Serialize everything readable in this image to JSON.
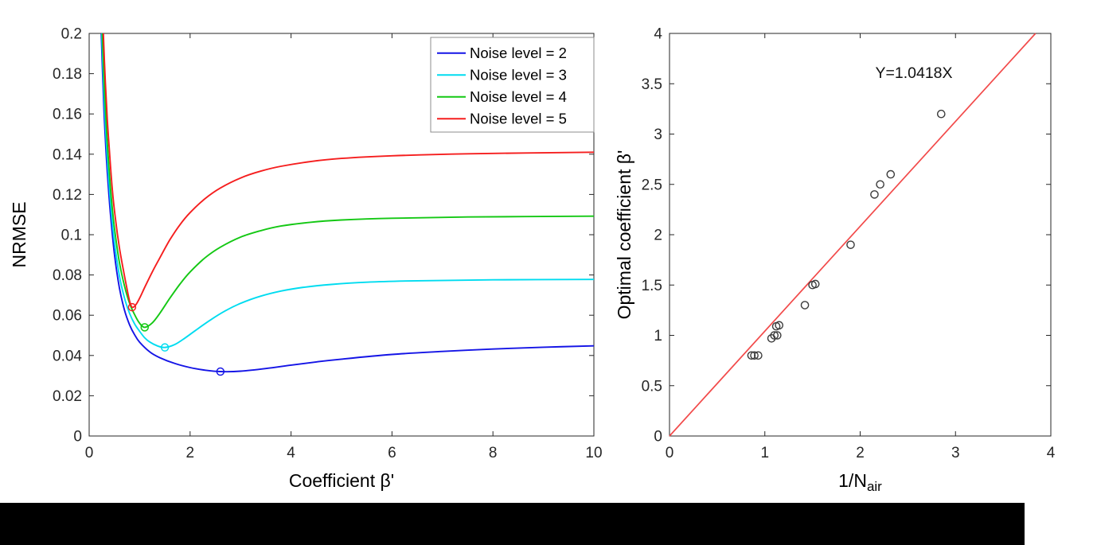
{
  "page": {
    "background": "#ffffff",
    "bottom_bar_color": "#000000",
    "axis_color": "#262626",
    "tick_label_color": "#262626"
  },
  "chart_data": [
    {
      "type": "line",
      "title": "",
      "xlabel": "Coefficient β'",
      "ylabel": "NRMSE",
      "xlim": [
        0,
        10
      ],
      "ylim": [
        0,
        0.2
      ],
      "xticks": [
        0,
        2,
        4,
        6,
        8,
        10
      ],
      "xtick_labels": [
        "0",
        "2",
        "4",
        "6",
        "8",
        "10"
      ],
      "yticks": [
        0,
        0.02,
        0.04,
        0.06,
        0.08,
        0.1,
        0.12,
        0.14,
        0.16,
        0.18,
        0.2
      ],
      "ytick_labels": [
        "0",
        "0.02",
        "0.04",
        "0.06",
        "0.08",
        "0.1",
        "0.12",
        "0.14",
        "0.16",
        "0.18",
        "0.2"
      ],
      "grid": false,
      "legend_position": "top-right",
      "series": [
        {
          "name": "Noise level = 2",
          "color": "#1414e6",
          "minimum": [
            2.6,
            0.032
          ],
          "points": [
            [
              0.24,
              0.2
            ],
            [
              0.28,
              0.17
            ],
            [
              0.32,
              0.148
            ],
            [
              0.36,
              0.131
            ],
            [
              0.42,
              0.111
            ],
            [
              0.5,
              0.0905
            ],
            [
              0.6,
              0.0735
            ],
            [
              0.7,
              0.0625
            ],
            [
              0.8,
              0.0553
            ],
            [
              0.9,
              0.0503
            ],
            [
              1.0,
              0.0466
            ],
            [
              1.2,
              0.0418
            ],
            [
              1.4,
              0.0389
            ],
            [
              1.7,
              0.036
            ],
            [
              2.0,
              0.034
            ],
            [
              2.3,
              0.0327
            ],
            [
              2.6,
              0.032
            ],
            [
              3.0,
              0.0322
            ],
            [
              3.5,
              0.0335
            ],
            [
              4.0,
              0.0352
            ],
            [
              4.5,
              0.0368
            ],
            [
              5.0,
              0.0382
            ],
            [
              6.0,
              0.0405
            ],
            [
              7.0,
              0.042
            ],
            [
              8.0,
              0.0432
            ],
            [
              9.0,
              0.0441
            ],
            [
              10.0,
              0.0448
            ]
          ]
        },
        {
          "name": "Noise level = 3",
          "color": "#00dcf0",
          "minimum": [
            1.5,
            0.044
          ],
          "points": [
            [
              0.25,
              0.2
            ],
            [
              0.29,
              0.172
            ],
            [
              0.33,
              0.151
            ],
            [
              0.37,
              0.134
            ],
            [
              0.43,
              0.114
            ],
            [
              0.5,
              0.0965
            ],
            [
              0.6,
              0.0795
            ],
            [
              0.7,
              0.0685
            ],
            [
              0.8,
              0.061
            ],
            [
              0.9,
              0.0557
            ],
            [
              1.0,
              0.052
            ],
            [
              1.1,
              0.0488
            ],
            [
              1.2,
              0.0467
            ],
            [
              1.35,
              0.0448
            ],
            [
              1.5,
              0.044
            ],
            [
              1.7,
              0.0455
            ],
            [
              1.9,
              0.0487
            ],
            [
              2.1,
              0.0523
            ],
            [
              2.4,
              0.0576
            ],
            [
              2.7,
              0.0622
            ],
            [
              3.0,
              0.0659
            ],
            [
              3.4,
              0.0695
            ],
            [
              3.8,
              0.072
            ],
            [
              4.2,
              0.0737
            ],
            [
              4.8,
              0.0753
            ],
            [
              5.5,
              0.0764
            ],
            [
              6.5,
              0.0771
            ],
            [
              8.0,
              0.0776
            ],
            [
              10.0,
              0.0778
            ]
          ]
        },
        {
          "name": "Noise level = 4",
          "color": "#14c814",
          "minimum": [
            1.1,
            0.054
          ],
          "points": [
            [
              0.26,
              0.2
            ],
            [
              0.3,
              0.174
            ],
            [
              0.34,
              0.154
            ],
            [
              0.38,
              0.138
            ],
            [
              0.44,
              0.118
            ],
            [
              0.5,
              0.1035
            ],
            [
              0.6,
              0.0862
            ],
            [
              0.7,
              0.0745
            ],
            [
              0.8,
              0.066
            ],
            [
              0.9,
              0.0603
            ],
            [
              1.0,
              0.056
            ],
            [
              1.1,
              0.054
            ],
            [
              1.25,
              0.0562
            ],
            [
              1.4,
              0.061
            ],
            [
              1.6,
              0.0685
            ],
            [
              1.8,
              0.0755
            ],
            [
              2.0,
              0.0815
            ],
            [
              2.3,
              0.0886
            ],
            [
              2.6,
              0.0938
            ],
            [
              3.0,
              0.0988
            ],
            [
              3.4,
              0.102
            ],
            [
              3.8,
              0.1043
            ],
            [
              4.4,
              0.1062
            ],
            [
              5.0,
              0.1073
            ],
            [
              6.0,
              0.1082
            ],
            [
              7.5,
              0.1088
            ],
            [
              10.0,
              0.1092
            ]
          ]
        },
        {
          "name": "Noise level = 5",
          "color": "#f51e1e",
          "minimum": [
            0.85,
            0.064
          ],
          "points": [
            [
              0.28,
              0.2
            ],
            [
              0.32,
              0.176
            ],
            [
              0.36,
              0.157
            ],
            [
              0.4,
              0.142
            ],
            [
              0.46,
              0.122
            ],
            [
              0.52,
              0.108
            ],
            [
              0.6,
              0.0935
            ],
            [
              0.68,
              0.0822
            ],
            [
              0.75,
              0.073
            ],
            [
              0.8,
              0.0672
            ],
            [
              0.85,
              0.064
            ],
            [
              0.92,
              0.065
            ],
            [
              1.0,
              0.0685
            ],
            [
              1.1,
              0.0738
            ],
            [
              1.25,
              0.0815
            ],
            [
              1.4,
              0.0885
            ],
            [
              1.6,
              0.0975
            ],
            [
              1.8,
              0.105
            ],
            [
              2.0,
              0.111
            ],
            [
              2.3,
              0.118
            ],
            [
              2.6,
              0.1232
            ],
            [
              3.0,
              0.1282
            ],
            [
              3.4,
              0.1316
            ],
            [
              3.8,
              0.134
            ],
            [
              4.4,
              0.1364
            ],
            [
              5.0,
              0.1379
            ],
            [
              6.0,
              0.1392
            ],
            [
              7.5,
              0.1402
            ],
            [
              10.0,
              0.141
            ]
          ]
        }
      ]
    },
    {
      "type": "scatter",
      "title": "",
      "xlabel": {
        "text": "1/N",
        "sub": "air"
      },
      "ylabel": "Optimal coefficient β'",
      "xlim": [
        0,
        4
      ],
      "ylim": [
        0,
        4
      ],
      "xticks": [
        0,
        1,
        2,
        3,
        4
      ],
      "xtick_labels": [
        "0",
        "1",
        "2",
        "3",
        "4"
      ],
      "yticks": [
        0,
        0.5,
        1,
        1.5,
        2,
        2.5,
        3,
        3.5,
        4
      ],
      "ytick_labels": [
        "0",
        "0.5",
        "1",
        "1.5",
        "2",
        "2.5",
        "3",
        "3.5",
        "4"
      ],
      "grid": false,
      "annotation": {
        "text": "Y=1.0418X"
      },
      "fit_line": {
        "equation": "Y=1.0418X",
        "slope": 1.0418,
        "color": "#f24a4a"
      },
      "marker": {
        "type": "open-circle",
        "color": "#3c3c3c"
      },
      "points": [
        [
          0.86,
          0.8
        ],
        [
          0.89,
          0.8
        ],
        [
          0.93,
          0.8
        ],
        [
          1.07,
          0.97
        ],
        [
          1.1,
          1.0
        ],
        [
          1.13,
          1.0
        ],
        [
          1.12,
          1.09
        ],
        [
          1.15,
          1.1
        ],
        [
          1.42,
          1.3
        ],
        [
          1.5,
          1.5
        ],
        [
          1.53,
          1.51
        ],
        [
          1.9,
          1.9
        ],
        [
          2.15,
          2.4
        ],
        [
          2.21,
          2.5
        ],
        [
          2.32,
          2.6
        ],
        [
          2.85,
          3.2
        ]
      ]
    }
  ]
}
